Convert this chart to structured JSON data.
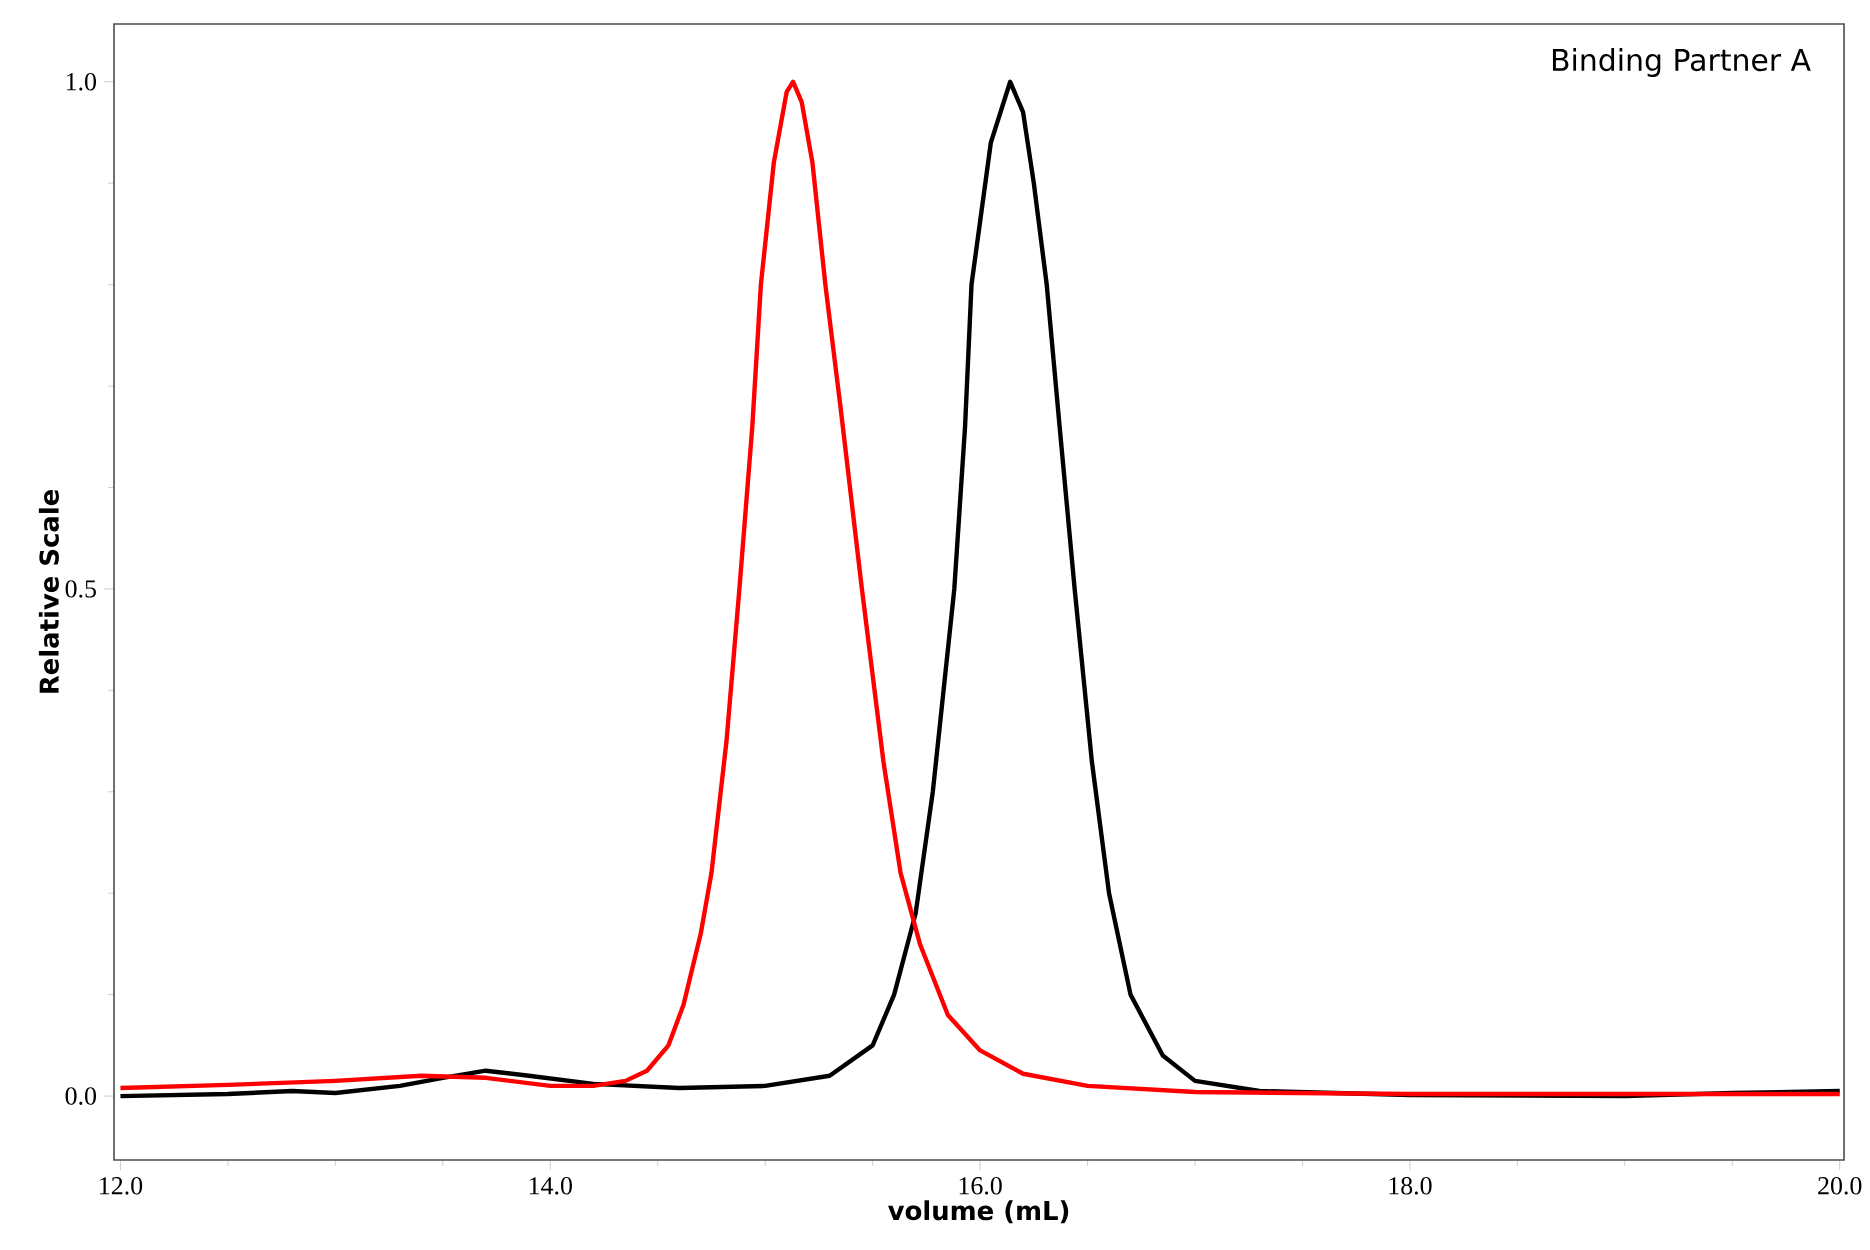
{
  "chart_data": {
    "type": "line",
    "xlabel": "volume (mL)",
    "ylabel": "Relative Scale",
    "annotations": [
      "Binding Partner A"
    ],
    "xlim": [
      11.97,
      20.02
    ],
    "ylim": [
      -0.063,
      1.057
    ],
    "xticks": [
      {
        "value": 12,
        "label": "12.0"
      },
      {
        "value": 14,
        "label": "14.0"
      },
      {
        "value": 16,
        "label": "16.0"
      },
      {
        "value": 18,
        "label": "18.0"
      },
      {
        "value": 20,
        "label": "20.0"
      }
    ],
    "yticks": [
      {
        "value": 0,
        "label": "0.0"
      },
      {
        "value": 0.5,
        "label": "0.5"
      },
      {
        "value": 1,
        "label": "1.0"
      }
    ],
    "grid": false,
    "marker": "none",
    "line_style": "solid",
    "series": [
      {
        "color": "#000000",
        "x": [
          12.0,
          12.5,
          12.8,
          13.0,
          13.3,
          13.5,
          13.7,
          13.9,
          14.2,
          14.6,
          15.0,
          15.3,
          15.5,
          15.6,
          15.7,
          15.78,
          15.88,
          15.93,
          15.96,
          16.05,
          16.14,
          16.2,
          16.25,
          16.31,
          16.37,
          16.44,
          16.52,
          16.6,
          16.7,
          16.85,
          17.0,
          17.3,
          18.0,
          19.0,
          19.5,
          20.0
        ],
        "values": [
          0.0,
          0.002,
          0.005,
          0.003,
          0.01,
          0.018,
          0.025,
          0.02,
          0.012,
          0.008,
          0.01,
          0.02,
          0.05,
          0.1,
          0.18,
          0.3,
          0.5,
          0.66,
          0.8,
          0.94,
          1.0,
          0.97,
          0.9,
          0.8,
          0.66,
          0.5,
          0.33,
          0.2,
          0.1,
          0.04,
          0.015,
          0.005,
          0.001,
          0.0,
          0.003,
          0.005
        ]
      },
      {
        "color": "#ff0000",
        "x": [
          12.0,
          12.5,
          13.0,
          13.4,
          13.7,
          14.0,
          14.2,
          14.35,
          14.45,
          14.55,
          14.62,
          14.7,
          14.75,
          14.82,
          14.88,
          14.94,
          14.98,
          15.04,
          15.1,
          15.13,
          15.17,
          15.22,
          15.28,
          15.35,
          15.45,
          15.55,
          15.63,
          15.72,
          15.85,
          16.0,
          16.2,
          16.5,
          17.0,
          18.0,
          19.0,
          20.0
        ],
        "values": [
          0.008,
          0.011,
          0.015,
          0.02,
          0.018,
          0.01,
          0.01,
          0.015,
          0.025,
          0.05,
          0.09,
          0.16,
          0.22,
          0.35,
          0.5,
          0.66,
          0.8,
          0.92,
          0.99,
          1.0,
          0.98,
          0.92,
          0.8,
          0.68,
          0.5,
          0.33,
          0.22,
          0.15,
          0.08,
          0.045,
          0.022,
          0.01,
          0.004,
          0.002,
          0.002,
          0.002
        ]
      }
    ]
  }
}
